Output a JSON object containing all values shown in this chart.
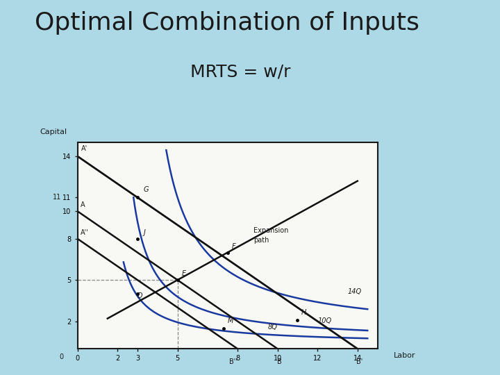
{
  "title": "Optimal Combination of Inputs",
  "subtitle": "MRTS = w/r",
  "bg_color": "#add8e6",
  "plot_bg": "#f8f8f5",
  "axis_color": "#1a1a1a",
  "text_color": "#1a1a1a",
  "title_fontsize": 26,
  "subtitle_fontsize": 18,
  "xlim": [
    0,
    15
  ],
  "ylim": [
    0,
    15
  ],
  "xticks": [
    0,
    2,
    3,
    5,
    8,
    10,
    12,
    14
  ],
  "yticks": [
    2,
    5,
    8,
    10,
    11,
    14
  ],
  "xlabel": "Labor",
  "ylabel": "Capital",
  "isoquant_color": "#1a3a9f",
  "budget_color": "#111111",
  "expansion_color": "#111111",
  "dashed_color": "#888888"
}
